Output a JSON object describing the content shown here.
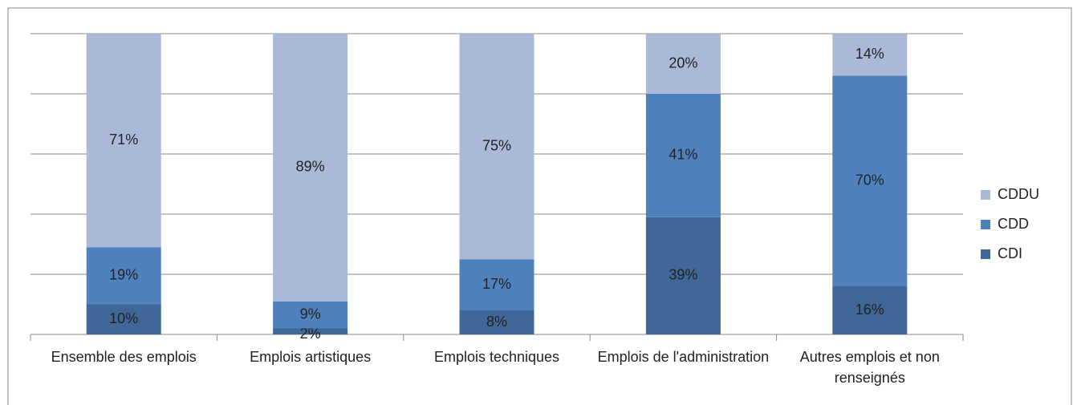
{
  "chart_data": {
    "type": "stacked_bar",
    "categories": [
      "Ensemble des emplois",
      "Emplois artistiques",
      "Emplois techniques",
      "Emplois de l'administration",
      "Autres emplois et non renseignés"
    ],
    "series": [
      {
        "name": "CDI",
        "color": "#3f6797",
        "values": [
          10,
          2,
          8,
          39,
          16
        ],
        "value_labels": [
          "10%",
          "2%",
          "8%",
          "39%",
          "16%"
        ]
      },
      {
        "name": "CDD",
        "color": "#4f81bd",
        "values": [
          19,
          9,
          17,
          41,
          70
        ],
        "value_labels": [
          "19%",
          "9%",
          "17%",
          "41%",
          "70%"
        ]
      },
      {
        "name": "CDDU",
        "color": "#aab9d8",
        "values": [
          71,
          89,
          75,
          20,
          14
        ],
        "value_labels": [
          "71%",
          "89%",
          "75%",
          "20%",
          "14%"
        ]
      }
    ],
    "ylim": [
      0,
      100
    ],
    "yticks": [
      0,
      20,
      40,
      60,
      80,
      100
    ],
    "grid": true,
    "legend": "right"
  }
}
